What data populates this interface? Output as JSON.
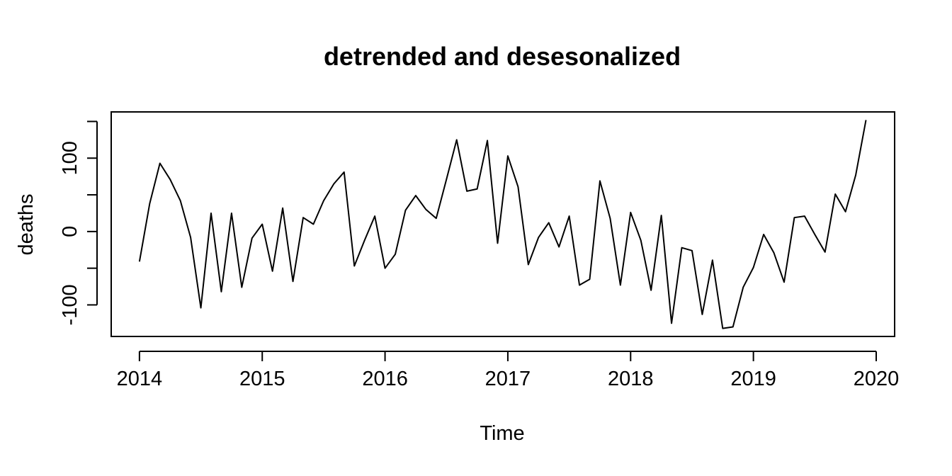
{
  "chart_data": {
    "type": "line",
    "title": "detrended and desesonalized",
    "xlabel": "Time",
    "ylabel": "deaths",
    "xlim": [
      2013.77,
      2020.15
    ],
    "ylim": [
      -143,
      163
    ],
    "x_ticks": [
      2014,
      2015,
      2016,
      2017,
      2018,
      2019,
      2020
    ],
    "x_tick_labels": [
      "2014",
      "2015",
      "2016",
      "2017",
      "2018",
      "2019",
      "2020"
    ],
    "y_ticks": [
      -100,
      0,
      100
    ],
    "y_tick_labels": [
      "-100",
      "0",
      "100"
    ],
    "y_minor_ticks": [
      -50,
      50,
      150
    ],
    "grid": false,
    "legend": "none",
    "series": [
      {
        "start": 2014,
        "frequency": 12,
        "color": "#000000",
        "values": [
          -41,
          38,
          93,
          71,
          42,
          -8,
          -104,
          25,
          -82,
          25,
          -76,
          -9,
          10,
          -54,
          32,
          -68,
          19,
          10,
          42,
          65,
          81,
          -47,
          -12,
          21,
          -50,
          -31,
          29,
          49,
          30,
          18,
          71,
          125,
          55,
          58,
          124,
          -16,
          103,
          61,
          -45,
          -8,
          12,
          -21,
          21,
          -73,
          -65,
          69,
          18,
          -73,
          26,
          -12,
          -80,
          22,
          -125,
          -22,
          -26,
          -113,
          -39,
          -132,
          -130,
          -76,
          -49,
          -4,
          -29,
          -69,
          19,
          21,
          -4,
          -28,
          51,
          27,
          77,
          152
        ]
      }
    ]
  }
}
